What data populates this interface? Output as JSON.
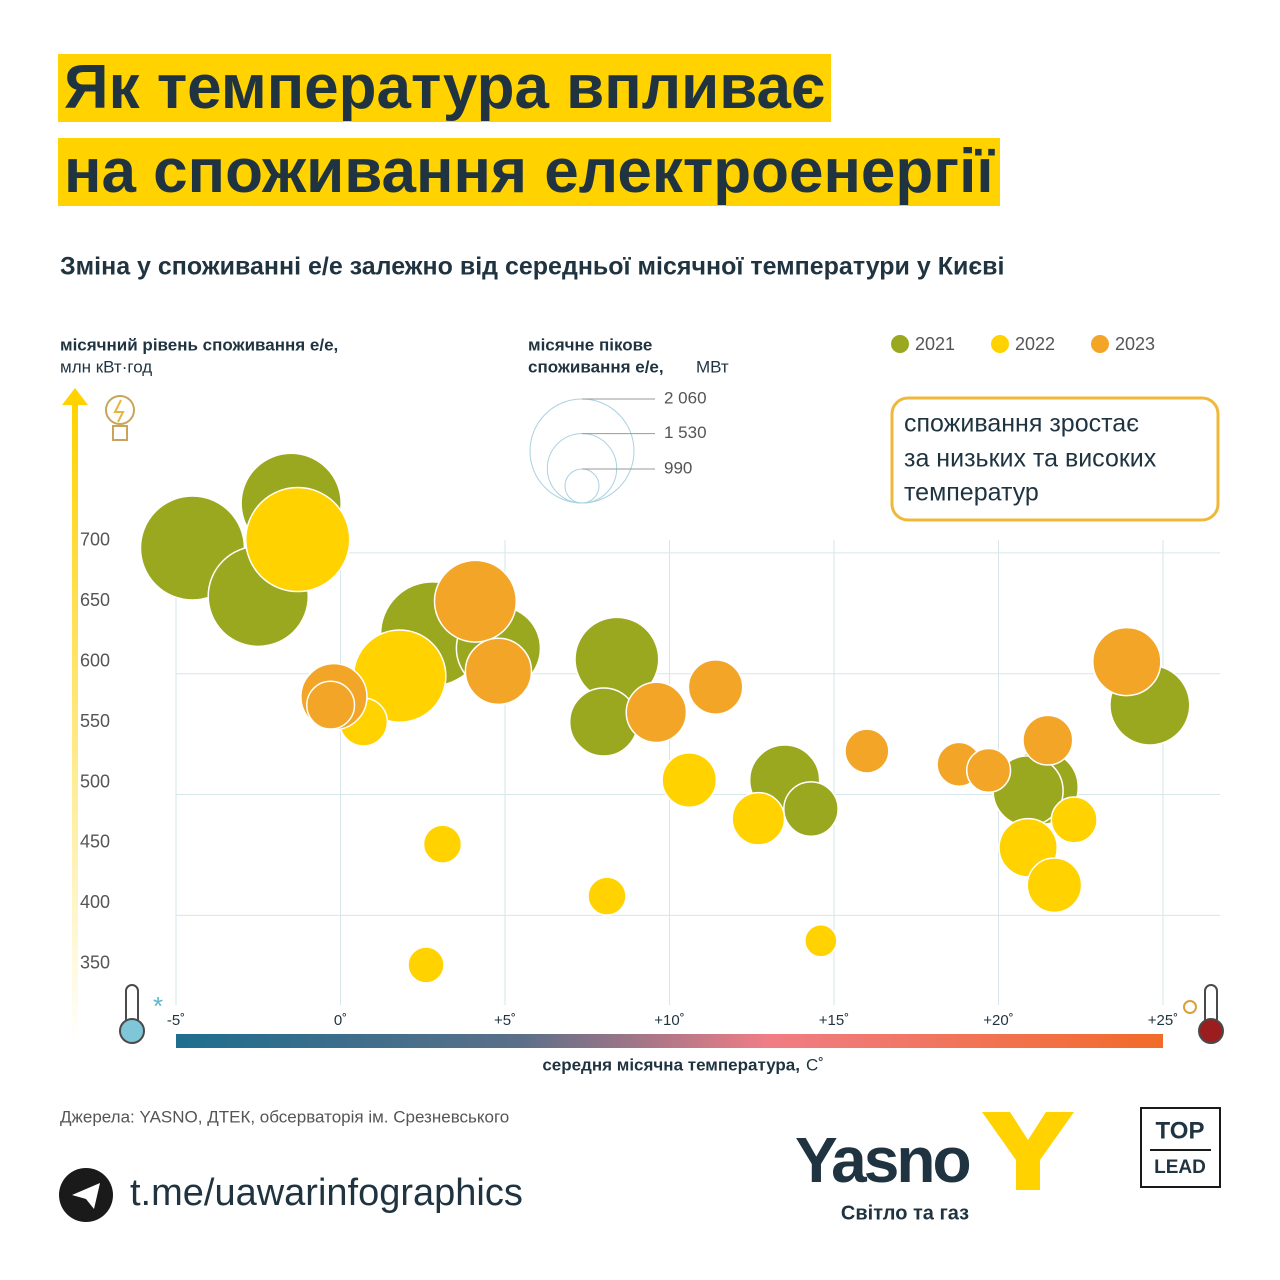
{
  "header": {
    "title_lines": [
      "Як температура впливає",
      "на споживання електроенергії"
    ],
    "subtitle": "Зміна у споживанні е/е залежно від середньої місячної температури у Києві"
  },
  "chart_data": {
    "type": "bubble",
    "y_label": [
      "місячний рівень споживання е/е,",
      "млн кВт·год"
    ],
    "x_label": "середня місячна температура,",
    "x_unit": "С˚",
    "size_title": [
      "місячне пікове",
      "споживання е/е,"
    ],
    "size_unit": "МВт",
    "size_legend": [
      {
        "value": 2060,
        "label": "2 060"
      },
      {
        "value": 1530,
        "label": "1 530"
      },
      990
    ],
    "sizelim": [
      990,
      2060
    ],
    "annotation": [
      "споживання зростає",
      "за низьких та високих",
      "температур"
    ],
    "xlim": [
      -5,
      25
    ],
    "xticks": [
      {
        "value": -5,
        "label": "-5˚"
      },
      {
        "value": 0,
        "label": "0˚"
      },
      {
        "value": 5,
        "label": "+5˚"
      },
      {
        "value": 10,
        "label": "+10˚"
      },
      {
        "value": 15,
        "label": "+15˚"
      },
      {
        "value": 20,
        "label": "+20˚"
      },
      {
        "value": 25,
        "label": "+25˚"
      }
    ],
    "ylim": [
      330,
      800
    ],
    "yticks": [
      700,
      650,
      600,
      550,
      500,
      450,
      400,
      350
    ],
    "ygrid": [
      700,
      600,
      500,
      400
    ],
    "grid": true,
    "legend": "top-right",
    "series": [
      {
        "name": "2021",
        "color": "#9aa820",
        "x": [
          -4.5,
          -2.5,
          -1.5,
          2.8,
          4.8,
          8.4,
          8.0,
          13.5,
          14.3,
          21.3,
          20.9,
          24.6
        ],
        "values": [
          704,
          664,
          741,
          633,
          621,
          612,
          560,
          512,
          488,
          506,
          503,
          574
        ],
        "sizes": [
          2060,
          2000,
          2000,
          2060,
          1755,
          1750,
          1510,
          1540,
          1300,
          1600,
          1540,
          1690
        ]
      },
      {
        "name": "2022",
        "color": "#ffd200",
        "x": [
          -1.3,
          1.8,
          0.7,
          3.1,
          2.6,
          8.1,
          10.6,
          12.7,
          14.6,
          20.9,
          21.7,
          22.3
        ],
        "values": [
          711,
          598,
          560,
          459,
          359,
          416,
          512,
          480,
          379,
          456,
          425,
          479
        ],
        "sizes": [
          2060,
          1880,
          1200,
          1050,
          1020,
          1050,
          1300,
          1270,
          960,
          1360,
          1300,
          1170
        ]
      },
      {
        "name": "2023",
        "color": "#f2a527",
        "x": [
          4.1,
          4.8,
          -0.2,
          -0.3,
          9.6,
          11.4,
          16.0,
          18.8,
          19.7,
          21.5,
          23.9
        ],
        "values": [
          660,
          602,
          581,
          574,
          568,
          589,
          536,
          525,
          520,
          545,
          610
        ],
        "sizes": [
          1720,
          1480,
          1480,
          1200,
          1390,
          1300,
          1140,
          1140,
          1140,
          1230,
          1510
        ]
      }
    ]
  },
  "footer": {
    "source": "Джерела: YASNO, ДТЕК, обсерваторія ім. Срезневського",
    "link": "t.me/uawarinfographics",
    "brand": "Yasno",
    "tagline": "Світло та газ",
    "partner": [
      "TOP",
      "LEAD"
    ]
  }
}
